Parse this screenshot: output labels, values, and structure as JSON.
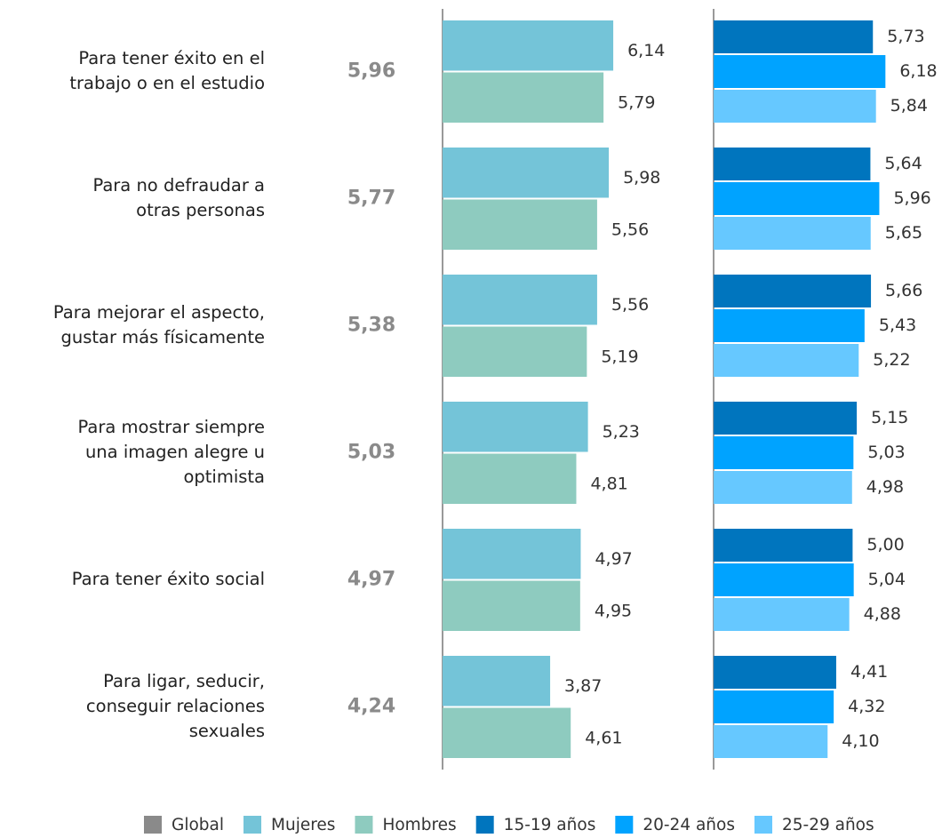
{
  "chart_data": {
    "type": "bar",
    "orientation": "horizontal",
    "categories": [
      [
        "Para tener éxito en el",
        "trabajo o en el estudio"
      ],
      [
        "Para no defraudar a",
        "otras personas"
      ],
      [
        "Para mejorar el aspecto,",
        "gustar más físicamente"
      ],
      [
        "Para mostrar siempre",
        "una imagen alegre u",
        "optimista"
      ],
      [
        "Para tener éxito social"
      ],
      [
        "Para ligar, seducir,",
        "conseguir relaciones",
        "sexuales"
      ]
    ],
    "xlim": [
      0,
      9.75
    ],
    "series": [
      {
        "name": "Global",
        "color": "#8a8a8a",
        "style": "text",
        "values": [
          5.96,
          5.77,
          5.38,
          5.03,
          4.97,
          4.24
        ],
        "value_labels": [
          "5,96",
          "5,77",
          "5,38",
          "5,03",
          "4,97",
          "4,24"
        ]
      },
      {
        "name": "Mujeres",
        "color": "#74c4d8",
        "panel": 1,
        "values": [
          6.14,
          5.98,
          5.56,
          5.23,
          4.97,
          3.87
        ],
        "value_labels": [
          "6,14",
          "5,98",
          "5,56",
          "5,23",
          "4,97",
          "3,87"
        ]
      },
      {
        "name": "Hombres",
        "color": "#8ecbbf",
        "panel": 1,
        "values": [
          5.79,
          5.56,
          5.19,
          4.81,
          4.95,
          4.61
        ],
        "value_labels": [
          "5,79",
          "5,56",
          "5,19",
          "4,81",
          "4,95",
          "4,61"
        ]
      },
      {
        "name": "15-19 años",
        "color": "#0075be",
        "panel": 2,
        "values": [
          5.73,
          5.64,
          5.66,
          5.15,
          5.0,
          4.41
        ],
        "value_labels": [
          "5,73",
          "5,64",
          "5,66",
          "5,15",
          "5,00",
          "4,41"
        ]
      },
      {
        "name": "20-24 años",
        "color": "#00a3ff",
        "panel": 2,
        "values": [
          6.18,
          5.96,
          5.43,
          5.03,
          5.04,
          4.32
        ],
        "value_labels": [
          "6,18",
          "5,96",
          "5,43",
          "5,03",
          "5,04",
          "4,32"
        ]
      },
      {
        "name": "25-29 años",
        "color": "#66c8ff",
        "panel": 2,
        "values": [
          5.84,
          5.65,
          5.22,
          4.98,
          4.88,
          4.1
        ],
        "value_labels": [
          "5,84",
          "5,65",
          "5,22",
          "4,98",
          "4,88",
          "4,10"
        ]
      }
    ]
  }
}
